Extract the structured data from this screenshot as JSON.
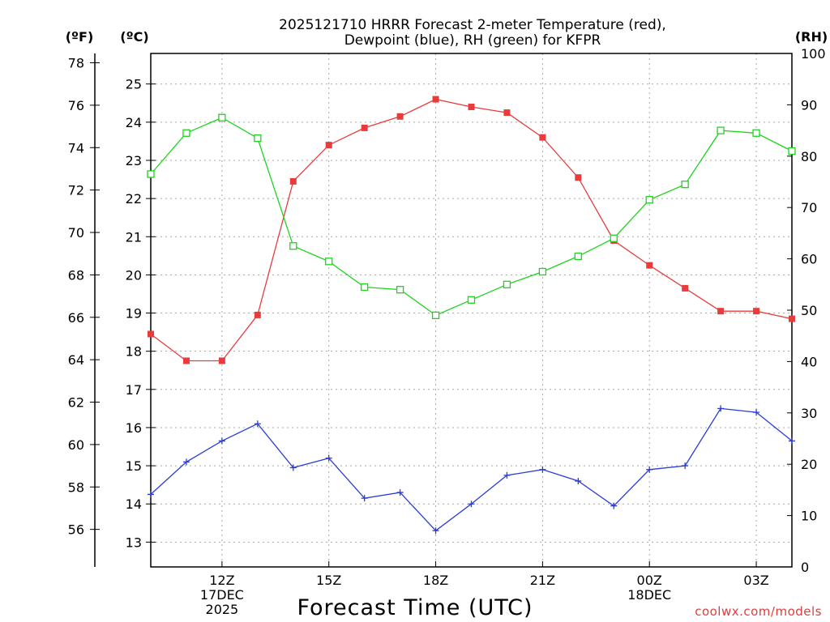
{
  "chart_data": {
    "type": "line",
    "title_line1": "2025121710 HRRR Forecast 2-meter Temperature (red),",
    "title_line2": "Dewpoint (blue), RH (green) for KFPR",
    "xlabel": "Forecast Time (UTC)",
    "credit": "coolwx.com/models",
    "units": {
      "fahrenheit": "(ºF)",
      "celsius": "(ºC)",
      "rh": "(RH)"
    },
    "x_hours": [
      10,
      11,
      12,
      13,
      14,
      15,
      16,
      17,
      18,
      19,
      20,
      21,
      22,
      23,
      24,
      25,
      26,
      27,
      28
    ],
    "xlim": [
      10,
      28
    ],
    "x_ticks": [
      {
        "hour": 12,
        "lines": [
          "12Z",
          "17DEC",
          "2025"
        ]
      },
      {
        "hour": 15,
        "lines": [
          "15Z"
        ]
      },
      {
        "hour": 18,
        "lines": [
          "18Z"
        ]
      },
      {
        "hour": 21,
        "lines": [
          "21Z"
        ]
      },
      {
        "hour": 24,
        "lines": [
          "00Z",
          "18DEC"
        ]
      },
      {
        "hour": 27,
        "lines": [
          "03Z"
        ]
      }
    ],
    "celsius_axis": {
      "range": [
        12.35,
        25.8
      ],
      "ticks": [
        13,
        14,
        15,
        16,
        17,
        18,
        19,
        20,
        21,
        22,
        23,
        24,
        25
      ]
    },
    "fahrenheit_axis": {
      "ticks": [
        56,
        58,
        60,
        62,
        64,
        66,
        68,
        70,
        72,
        74,
        76,
        78
      ]
    },
    "rh_axis": {
      "range": [
        0,
        100
      ],
      "ticks": [
        0,
        10,
        20,
        30,
        40,
        50,
        60,
        70,
        80,
        90,
        100
      ]
    },
    "series": [
      {
        "name": "2-meter Temperature (°C)",
        "color": "#e83c3c",
        "marker": "filled-square",
        "axis": "celsius",
        "values": [
          18.45,
          17.75,
          17.75,
          18.95,
          22.45,
          23.4,
          23.85,
          24.15,
          24.6,
          24.4,
          24.25,
          23.6,
          22.55,
          20.9,
          20.25,
          19.65,
          19.05,
          19.05,
          18.85
        ]
      },
      {
        "name": "Dewpoint (°C)",
        "color": "#2a3cd8",
        "marker": "plus",
        "axis": "celsius",
        "values": [
          14.25,
          15.1,
          15.65,
          16.1,
          14.95,
          15.2,
          14.15,
          14.3,
          13.3,
          14.0,
          14.75,
          14.9,
          14.6,
          13.95,
          14.9,
          15.0,
          16.5,
          16.4,
          15.65
        ]
      },
      {
        "name": "Relative Humidity (%)",
        "color": "#1ed41e",
        "marker": "open-square",
        "axis": "rh",
        "values": [
          76.5,
          84.5,
          87.5,
          83.5,
          62.5,
          59.5,
          54.5,
          54.0,
          49.0,
          52.0,
          55.0,
          57.5,
          60.5,
          64.0,
          71.5,
          74.5,
          85.0,
          84.5,
          81.0
        ]
      }
    ]
  }
}
